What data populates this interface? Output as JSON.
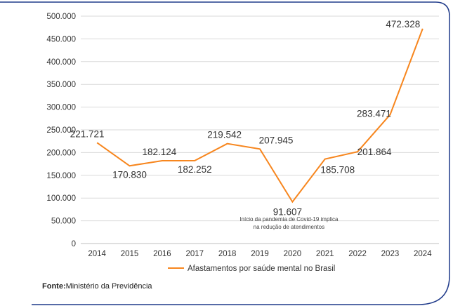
{
  "chart_data": {
    "type": "line",
    "categories": [
      "2014",
      "2015",
      "2016",
      "2017",
      "2018",
      "2019",
      "2020",
      "2021",
      "2022",
      "2023",
      "2024"
    ],
    "series": [
      {
        "name": "Afastamentos por saúde mental no Brasil",
        "values": [
          221721,
          170830,
          182124,
          182252,
          219542,
          207945,
          91607,
          185708,
          201864,
          283471,
          472328
        ],
        "labels": [
          "221.721",
          "170.830",
          "182.124",
          "182.252",
          "219.542",
          "207.945",
          "91.607",
          "185.708",
          "201.864",
          "283.471",
          "472.328"
        ],
        "color": "#F7861E"
      }
    ],
    "yticks": [
      "0",
      "50.000",
      "100.000",
      "150.000",
      "200.000",
      "250.000",
      "300.000",
      "350.000",
      "400.000",
      "450.000",
      "500.000"
    ],
    "ylim": [
      0,
      500000
    ],
    "grid": true,
    "legend_position": "bottom",
    "annotation": {
      "category": "2020",
      "lines": [
        "Início da pandemia de Covid-19 implica",
        "na redução de atendimentos"
      ]
    }
  },
  "source": {
    "label": "Fonte:",
    "text": "Ministério da Previdência"
  },
  "colors": {
    "line": "#F7861E",
    "frame": "#1F3A8A",
    "grid": "#D9D9D9"
  }
}
